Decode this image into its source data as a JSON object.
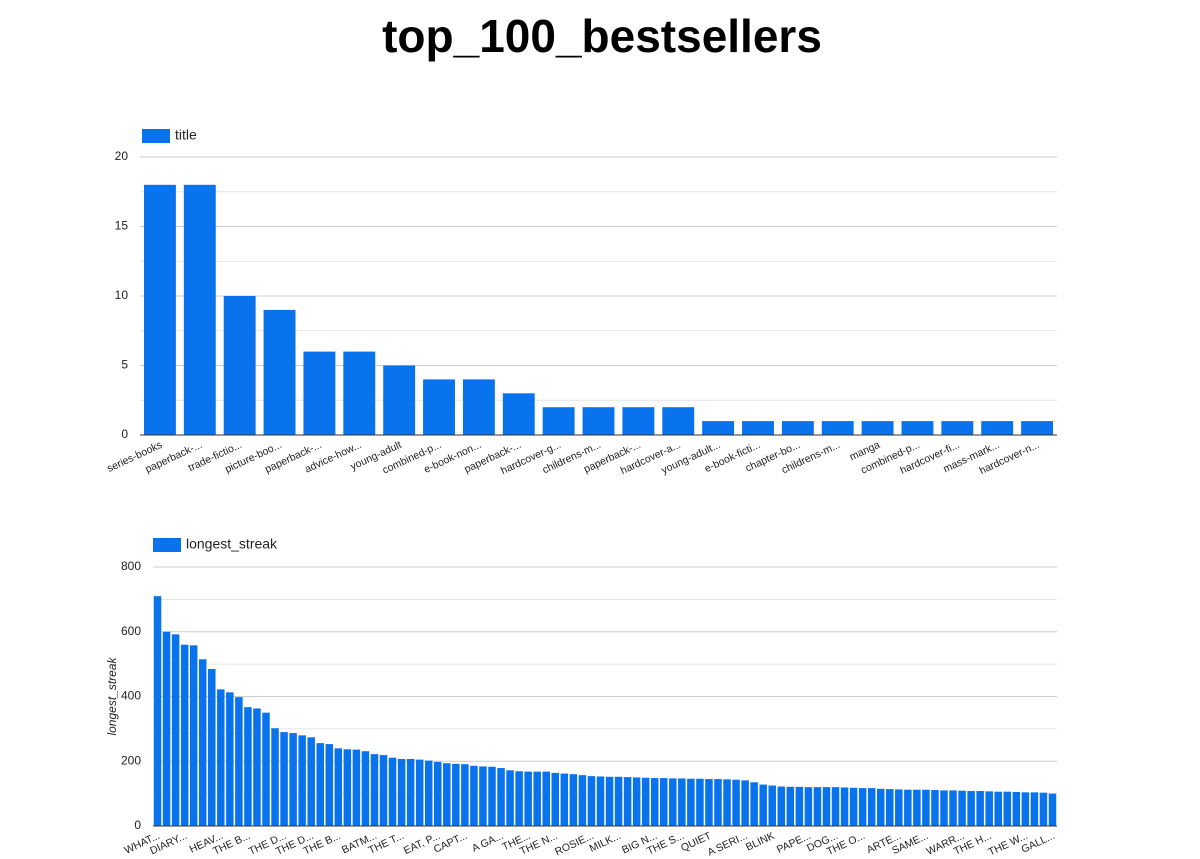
{
  "title": "top_100_bestsellers",
  "chart_data": [
    {
      "type": "bar",
      "categories": [
        "series-books",
        "paperback-...",
        "trade-fictio...",
        "picture-boo...",
        "paperback-...",
        "advice-how...",
        "young-adult",
        "combined-p...",
        "e-book-non...",
        "paperback-...",
        "hardcover-g...",
        "childrens-m...",
        "paperback-...",
        "hardcover-a...",
        "young-adult...",
        "e-book-ficti...",
        "chapter-bo...",
        "childrens-m...",
        "manga",
        "combined-p...",
        "hardcover-fi...",
        "mass-mark...",
        "hardcover-n..."
      ],
      "series": [
        {
          "name": "title",
          "color": "#0873ed",
          "values": [
            18,
            18,
            10,
            9,
            6,
            6,
            5,
            4,
            4,
            3,
            2,
            2,
            2,
            2,
            1,
            1,
            1,
            1,
            1,
            1,
            1,
            1,
            1
          ]
        }
      ],
      "ylim": [
        0,
        20
      ],
      "yticks": [
        0,
        5,
        10,
        15,
        20
      ],
      "grid": true,
      "legend": "top-left"
    },
    {
      "type": "bar",
      "ylabel": "longest_streak",
      "categories": [
        "WHAT...",
        null,
        null,
        "DIARY...",
        null,
        null,
        null,
        "HEAV...",
        null,
        null,
        "THE B...",
        null,
        null,
        null,
        "THE D...",
        null,
        null,
        "THE D...",
        null,
        null,
        "THE B...",
        null,
        null,
        null,
        "BATM...",
        null,
        null,
        "THE T...",
        null,
        null,
        null,
        "EAT, P...",
        null,
        null,
        "CAPT...",
        null,
        null,
        null,
        "A GA...",
        null,
        null,
        "THE...",
        null,
        null,
        "THE N...",
        null,
        null,
        null,
        "ROSIE...",
        null,
        null,
        "MILK...",
        null,
        null,
        null,
        "BIG N...",
        null,
        null,
        "THE S...",
        null,
        null,
        "QUIET",
        null,
        null,
        null,
        "A SERI...",
        null,
        null,
        "BLINK",
        null,
        null,
        null,
        "PAPE...",
        null,
        null,
        "DOG...",
        null,
        null,
        "THE O...",
        null,
        null,
        null,
        "ARTE...",
        null,
        null,
        "SAME...",
        null,
        null,
        null,
        "WARR...",
        null,
        null,
        "THE H...",
        null,
        null,
        null,
        "THE W...",
        null,
        null,
        "GALL..."
      ],
      "series": [
        {
          "name": "longest_streak",
          "color": "#0873ed",
          "values": [
            710,
            600,
            592,
            560,
            558,
            515,
            485,
            422,
            413,
            398,
            367,
            363,
            350,
            302,
            290,
            287,
            280,
            274,
            256,
            253,
            240,
            237,
            236,
            231,
            222,
            219,
            211,
            207,
            207,
            205,
            202,
            198,
            194,
            192,
            191,
            186,
            184,
            183,
            179,
            172,
            169,
            168,
            168,
            168,
            164,
            162,
            160,
            157,
            154,
            153,
            152,
            152,
            151,
            150,
            149,
            148,
            148,
            147,
            147,
            146,
            146,
            145,
            145,
            144,
            143,
            141,
            135,
            128,
            125,
            122,
            121,
            121,
            120,
            120,
            120,
            120,
            119,
            118,
            117,
            117,
            115,
            114,
            113,
            112,
            112,
            112,
            111,
            110,
            110,
            109,
            108,
            108,
            107,
            106,
            106,
            105,
            104,
            104,
            103,
            100
          ]
        }
      ],
      "ylim": [
        0,
        800
      ],
      "yticks": [
        0,
        200,
        400,
        600,
        800
      ],
      "grid": true,
      "legend": "top-left"
    }
  ]
}
